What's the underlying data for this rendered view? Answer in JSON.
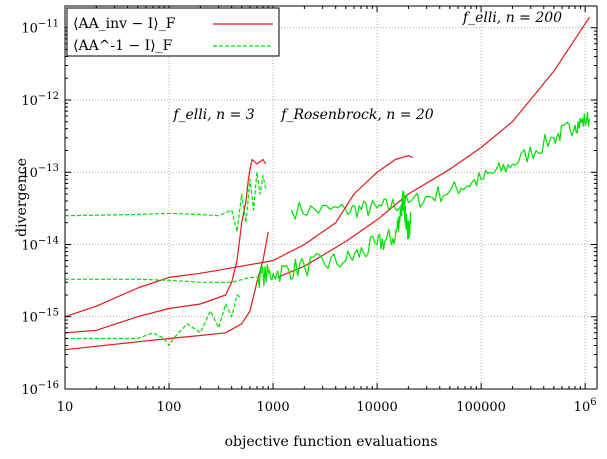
{
  "chart_data": {
    "type": "line",
    "xlabel": "objective function evaluations",
    "ylabel": "divergence",
    "x_scale": "log",
    "y_scale": "log",
    "xlim": [
      10,
      1300000
    ],
    "ylim": [
      1e-16,
      2e-11
    ],
    "grid": true,
    "legend_position": "top-left",
    "x_ticks": [
      {
        "value": 10,
        "label": "10"
      },
      {
        "value": 100,
        "label": "100"
      },
      {
        "value": 1000,
        "label": "1000"
      },
      {
        "value": 10000,
        "label": "10000"
      },
      {
        "value": 100000,
        "label": "100000"
      },
      {
        "value": 1000000,
        "label": "10^6"
      }
    ],
    "y_ticks": [
      {
        "value": 1e-16,
        "label": "10^-16"
      },
      {
        "value": 1e-15,
        "label": "10^-15"
      },
      {
        "value": 1e-14,
        "label": "10^-14"
      },
      {
        "value": 1e-13,
        "label": "10^-13"
      },
      {
        "value": 1e-12,
        "label": "10^-12"
      },
      {
        "value": 1e-11,
        "label": "10^-11"
      }
    ],
    "legend": [
      {
        "label": "⟨AA_inv − I⟩_F",
        "color": "#e31a1c",
        "style": "solid"
      },
      {
        "label": "⟨AA^-1 − I⟩_F",
        "color": "#00e000",
        "style": "dashed"
      }
    ],
    "annotations": [
      {
        "text": "f_elli, n = 200",
        "x": 600000,
        "y": 1.2e-11
      },
      {
        "text": "f_elli, n = 3",
        "x": 110,
        "y": 5.5e-13
      },
      {
        "text": "f_Rosenbrock, n = 20",
        "x": 1200,
        "y": 5.5e-13
      }
    ],
    "series": [
      {
        "group": "elli-200",
        "kind": "red",
        "dashed": false,
        "noise": 0,
        "points": [
          [
            1100,
            3.5e-15
          ],
          [
            2000,
            5e-15
          ],
          [
            5000,
            1.1e-14
          ],
          [
            10000,
            2.2e-14
          ],
          [
            20000,
            5e-14
          ],
          [
            50000,
            1.1e-13
          ],
          [
            100000,
            2.2e-13
          ],
          [
            200000,
            5e-13
          ],
          [
            500000,
            2.5e-12
          ],
          [
            800000,
            7e-12
          ],
          [
            1100000,
            1.4e-11
          ]
        ]
      },
      {
        "group": "elli-200",
        "kind": "green",
        "dashed": false,
        "noise": 0.25,
        "points": [
          [
            1500,
            3e-14
          ],
          [
            5000,
            3e-14
          ],
          [
            10000,
            3.2e-14
          ],
          [
            20000,
            3.8e-14
          ],
          [
            50000,
            5.5e-14
          ],
          [
            100000,
            8e-14
          ],
          [
            200000,
            1.3e-13
          ],
          [
            500000,
            3e-13
          ],
          [
            800000,
            4.5e-13
          ],
          [
            1100000,
            5.5e-13
          ]
        ]
      },
      {
        "group": "elli-3",
        "kind": "red",
        "dashed": false,
        "noise": 0,
        "points": [
          [
            10,
            6e-16
          ],
          [
            20,
            6.5e-16
          ],
          [
            50,
            1e-15
          ],
          [
            100,
            1.3e-15
          ],
          [
            200,
            1.5e-15
          ],
          [
            350,
            2e-15
          ],
          [
            400,
            3e-15
          ],
          [
            450,
            6e-15
          ],
          [
            500,
            2e-14
          ],
          [
            550,
            4e-14
          ],
          [
            580,
            8e-14
          ],
          [
            600,
            1.1e-13
          ],
          [
            630,
            1.5e-13
          ],
          [
            700,
            1.3e-13
          ],
          [
            800,
            1.5e-13
          ],
          [
            850,
            1.3e-13
          ]
        ]
      },
      {
        "group": "elli-3",
        "kind": "red",
        "dashed": false,
        "noise": 0,
        "points": [
          [
            10,
            3.5e-16
          ],
          [
            50,
            4.5e-16
          ],
          [
            100,
            5e-16
          ],
          [
            200,
            5.5e-16
          ],
          [
            350,
            6e-16
          ],
          [
            500,
            8e-16
          ],
          [
            600,
            1.2e-15
          ],
          [
            700,
            3e-15
          ],
          [
            800,
            6e-15
          ],
          [
            900,
            1.5e-14
          ]
        ]
      },
      {
        "group": "elli-3",
        "kind": "green",
        "dashed": true,
        "noise": 0,
        "points": [
          [
            10,
            2.5e-14
          ],
          [
            50,
            2.6e-14
          ],
          [
            100,
            2.7e-14
          ],
          [
            200,
            2.6e-14
          ],
          [
            300,
            2.5e-14
          ],
          [
            400,
            3e-14
          ],
          [
            450,
            1.5e-14
          ],
          [
            500,
            5e-14
          ],
          [
            550,
            2e-14
          ],
          [
            600,
            8e-14
          ],
          [
            650,
            3e-14
          ],
          [
            700,
            1e-13
          ],
          [
            750,
            5e-14
          ],
          [
            800,
            9e-14
          ],
          [
            850,
            6e-14
          ]
        ]
      },
      {
        "group": "elli-3",
        "kind": "green",
        "dashed": true,
        "noise": 0,
        "points": [
          [
            10,
            5e-16
          ],
          [
            30,
            5e-16
          ],
          [
            50,
            5e-16
          ],
          [
            70,
            6e-16
          ],
          [
            90,
            5e-16
          ],
          [
            100,
            4e-16
          ],
          [
            110,
            5e-16
          ],
          [
            150,
            8e-16
          ],
          [
            200,
            6e-16
          ],
          [
            250,
            1.2e-15
          ],
          [
            300,
            7e-16
          ],
          [
            350,
            1.5e-15
          ],
          [
            400,
            1e-15
          ],
          [
            450,
            2e-15
          ],
          [
            500,
            1.8e-15
          ]
        ]
      },
      {
        "group": "rosenbrock-20",
        "kind": "red",
        "dashed": false,
        "noise": 0,
        "points": [
          [
            10,
            1e-15
          ],
          [
            20,
            1.4e-15
          ],
          [
            50,
            2.5e-15
          ],
          [
            100,
            3.5e-15
          ],
          [
            200,
            4e-15
          ],
          [
            500,
            5e-15
          ],
          [
            1000,
            6e-15
          ],
          [
            2000,
            1e-14
          ],
          [
            4000,
            2e-14
          ],
          [
            6000,
            5e-14
          ],
          [
            10000,
            1e-13
          ],
          [
            15000,
            1.5e-13
          ],
          [
            20000,
            1.7e-13
          ],
          [
            22000,
            1.6e-13
          ]
        ]
      },
      {
        "group": "rosenbrock-20",
        "kind": "green",
        "dashed": true,
        "noise": 0,
        "points": [
          [
            10,
            3.3e-15
          ],
          [
            50,
            3.3e-15
          ],
          [
            100,
            3.2e-15
          ],
          [
            200,
            3e-15
          ],
          [
            400,
            3e-15
          ],
          [
            600,
            3.5e-15
          ],
          [
            700,
            3.5e-15
          ]
        ]
      },
      {
        "group": "rosenbrock-20",
        "kind": "green",
        "dashed": false,
        "noise": 0.3,
        "points": [
          [
            700,
            3.5e-15
          ],
          [
            1000,
            4e-15
          ],
          [
            2000,
            5e-15
          ],
          [
            5000,
            6e-15
          ],
          [
            10000,
            1e-14
          ],
          [
            15000,
            1.3e-14
          ],
          [
            17000,
            3e-14
          ],
          [
            18000,
            4.5e-14
          ],
          [
            19000,
            2e-14
          ],
          [
            20000,
            1.5e-14
          ],
          [
            21000,
            2e-14
          ]
        ]
      }
    ]
  }
}
